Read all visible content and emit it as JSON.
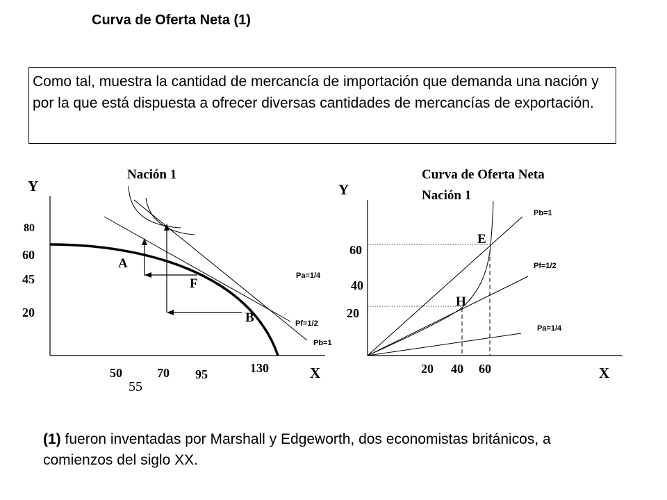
{
  "title": "Curva de Oferta Neta (1)",
  "definition": "Como tal, muestra la cantidad de mercancía de importación que demanda una nación y por la que está dispuesta a ofrecer diversas cantidades de mercancías de exportación.",
  "footnote": {
    "marker": "(1)",
    "text": " fueron inventadas por Marshall y Edgeworth, dos economistas británicos, a comienzos del siglo XX."
  },
  "left_diagram": {
    "title": "Nación 1",
    "y_axis": "Y",
    "x_axis": "X",
    "y_ticks": [
      "80",
      "60",
      "45",
      "20"
    ],
    "x_ticks": [
      "50",
      "55",
      "70",
      "95",
      "130"
    ],
    "points": [
      "A",
      "F",
      "B"
    ],
    "price_lines": [
      "Pa=1/4",
      "Pf=1/2",
      "Pb=1"
    ]
  },
  "right_diagram": {
    "title_line1": "Curva de Oferta Neta",
    "title_line2": "Nación 1",
    "y_axis": "Y",
    "x_axis": "X",
    "y_ticks": [
      "60",
      "40",
      "20"
    ],
    "x_ticks": [
      "20",
      "40",
      "60"
    ],
    "points": [
      "E",
      "H"
    ],
    "price_lines": [
      "Pb=1",
      "Pf=1/2",
      "Pa=1/4"
    ]
  }
}
